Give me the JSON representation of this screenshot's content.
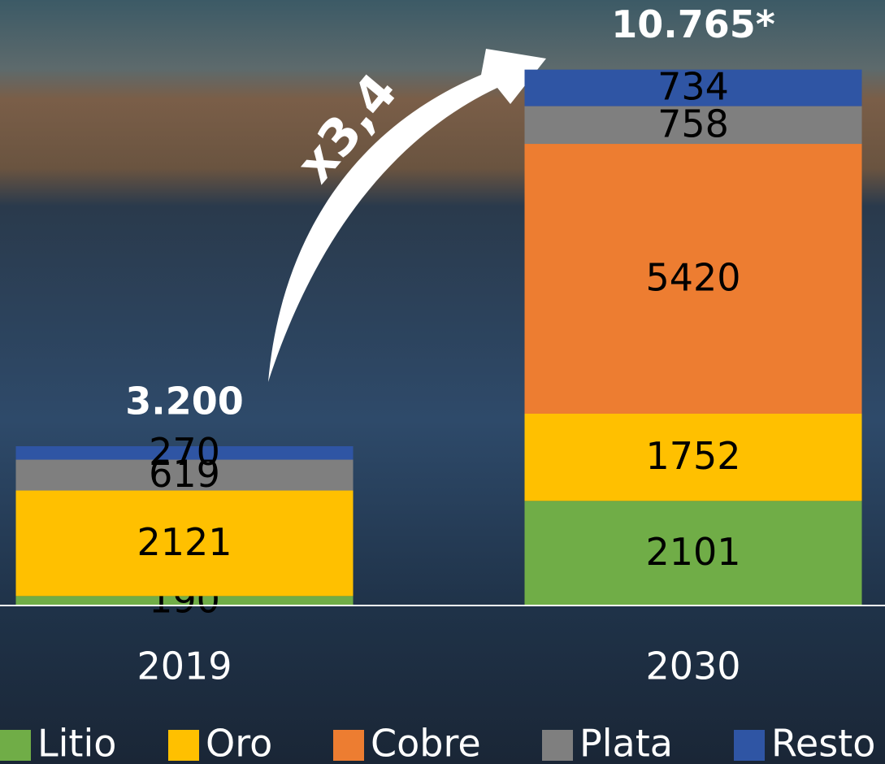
{
  "chart_data": {
    "type": "stacked-bar",
    "categories": [
      "2019",
      "2030"
    ],
    "series": [
      {
        "name": "Litio",
        "color": "#70ad47",
        "values": [
          190,
          2101
        ]
      },
      {
        "name": "Oro",
        "color": "#ffc000",
        "values": [
          2121,
          1752
        ]
      },
      {
        "name": "Cobre",
        "color": "#ed7d31",
        "values": [
          null,
          5420
        ]
      },
      {
        "name": "Plata",
        "color": "#7f7f7f",
        "values": [
          619,
          758
        ]
      },
      {
        "name": "Resto",
        "color": "#2f55a4",
        "values": [
          270,
          734
        ]
      }
    ],
    "totals": {
      "values": [
        3200,
        10765
      ],
      "value_labels": [
        "3.200",
        "10.765*"
      ]
    },
    "annotation": "x3,4",
    "ylim": [
      0,
      12000
    ]
  }
}
